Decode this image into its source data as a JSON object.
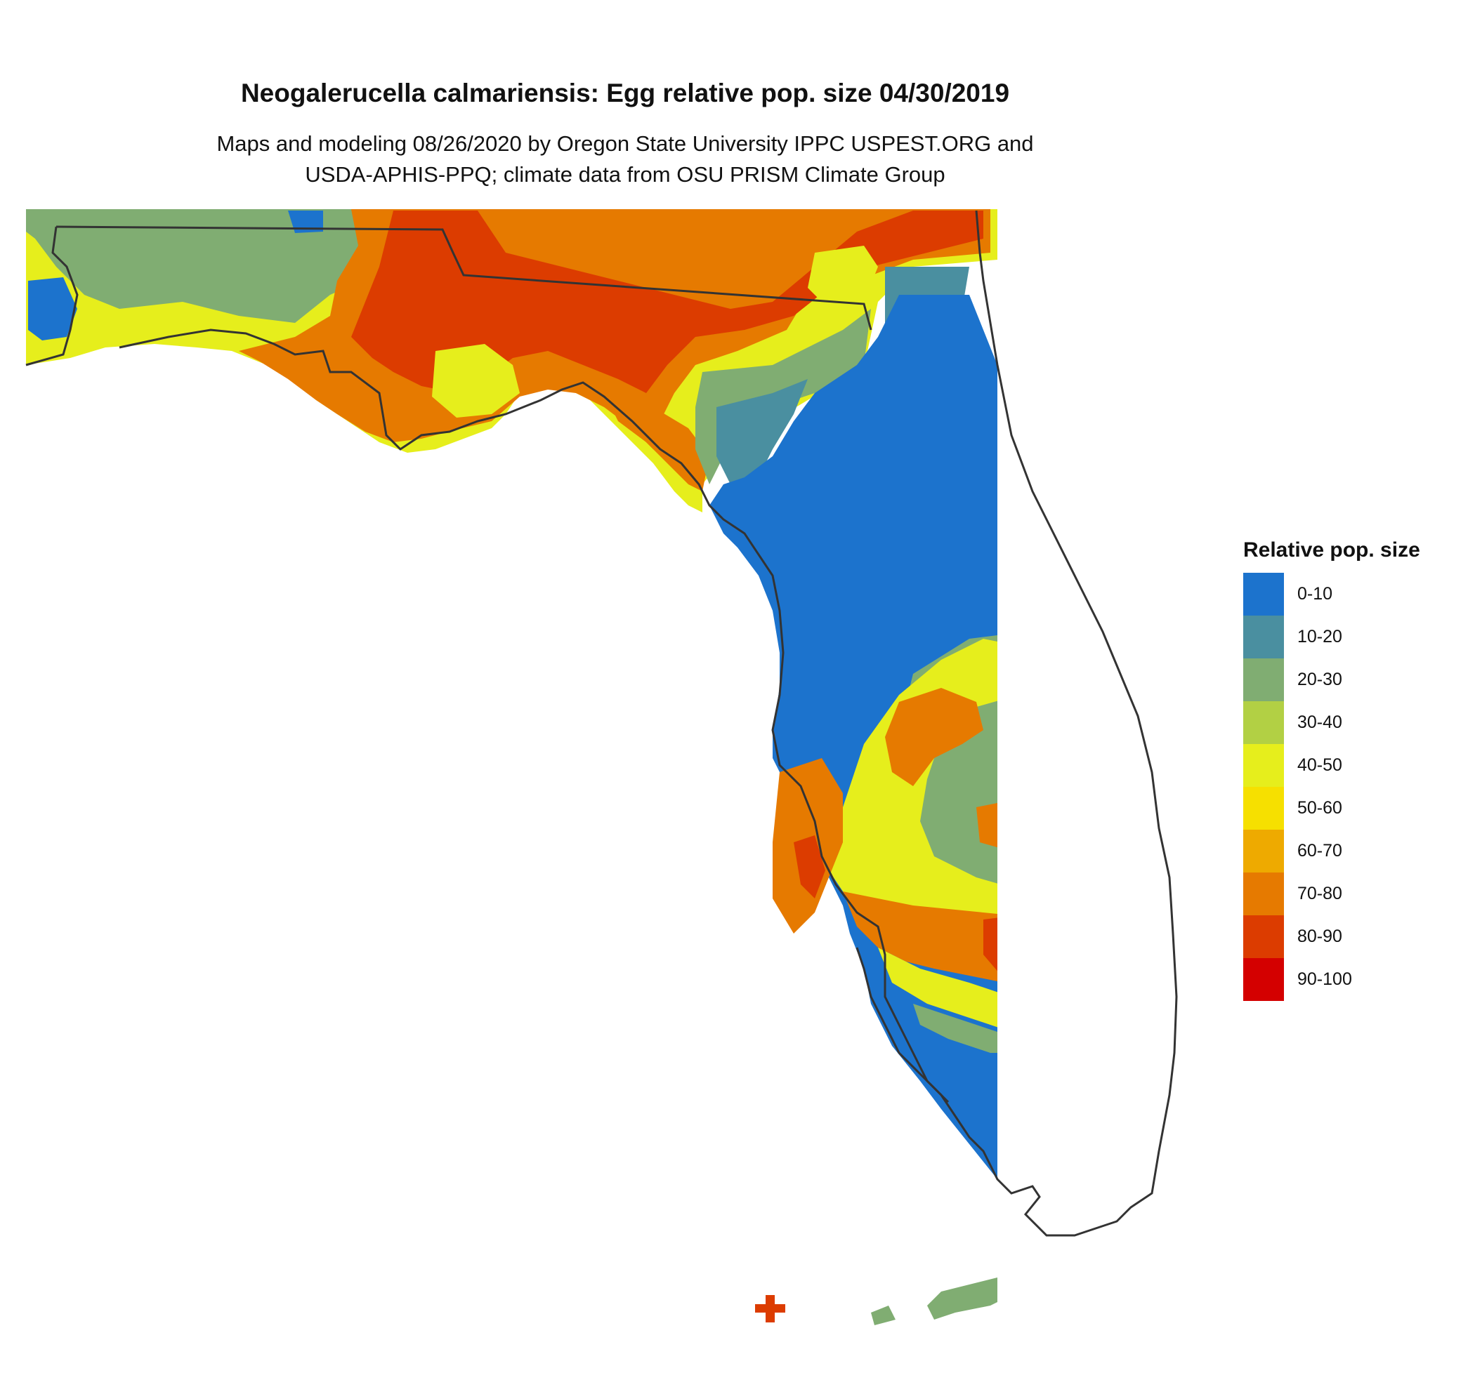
{
  "title": "Neogalerucella calmariensis: Egg relative pop. size 04/30/2019",
  "subtitle_line1": "Maps and modeling 08/26/2020 by Oregon State University IPPC USPEST.ORG and",
  "subtitle_line2": "USDA-APHIS-PPQ; climate data from OSU PRISM Climate Group",
  "legend": {
    "title": "Relative pop. size",
    "items": [
      {
        "label": "0-10",
        "color": "#1c73cd"
      },
      {
        "label": "10-20",
        "color": "#4a8fa0"
      },
      {
        "label": "20-30",
        "color": "#80ad72"
      },
      {
        "label": "30-40",
        "color": "#b2d044"
      },
      {
        "label": "40-50",
        "color": "#e6ee1c"
      },
      {
        "label": "50-60",
        "color": "#f6e000"
      },
      {
        "label": "60-70",
        "color": "#eeaa00"
      },
      {
        "label": "70-80",
        "color": "#e67a00"
      },
      {
        "label": "80-90",
        "color": "#dc3c00"
      },
      {
        "label": "90-100",
        "color": "#d40000"
      }
    ]
  }
}
